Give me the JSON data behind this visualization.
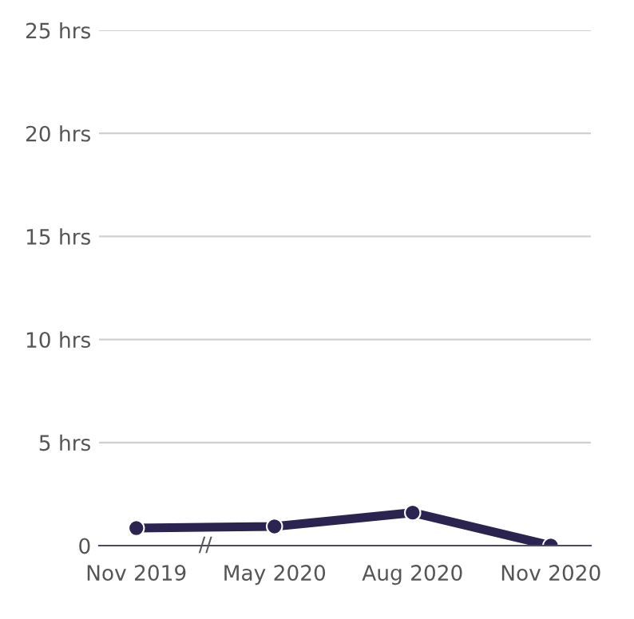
{
  "chart_data": {
    "type": "line",
    "categories": [
      "Nov 2019",
      "May 2020",
      "Aug 2020",
      "Nov 2020"
    ],
    "series": [
      {
        "color": "#2b2350",
        "values": [
          0.85,
          0.93,
          1.6,
          0
        ]
      }
    ],
    "ylim": [
      0,
      25
    ],
    "yticks": [
      {
        "value": 0,
        "label": "0"
      },
      {
        "value": 5,
        "label": "5 hrs"
      },
      {
        "value": 10,
        "label": "10 hrs"
      },
      {
        "value": 15,
        "label": "15 hrs"
      },
      {
        "value": 20,
        "label": "20 hrs"
      },
      {
        "value": 25,
        "label": "25 hrs"
      }
    ],
    "grid": "y",
    "marker": "circle",
    "line_style": "solid",
    "annotations": [
      "//"
    ]
  }
}
